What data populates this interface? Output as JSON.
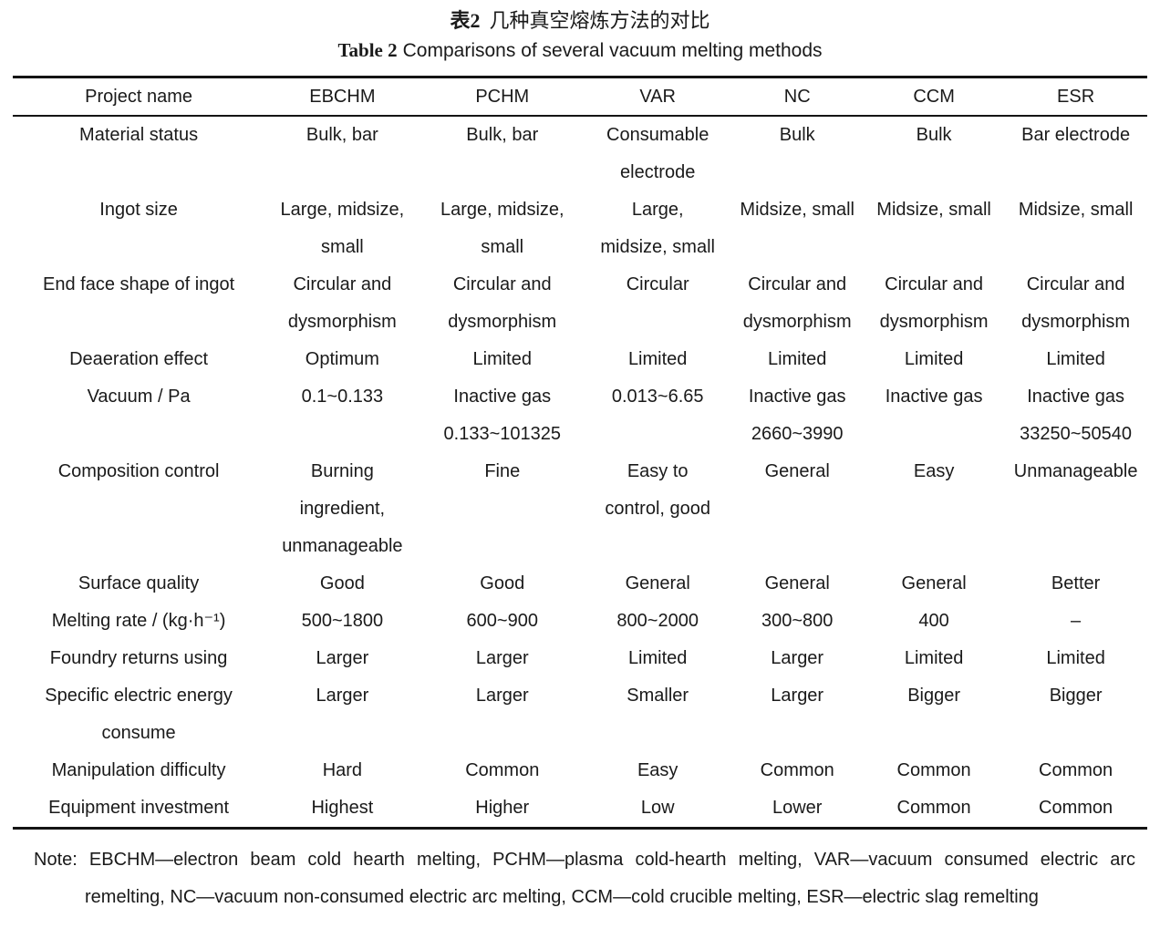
{
  "caption": {
    "zh_label": "表2",
    "zh_text": "几种真空熔炼方法的对比",
    "en_label": "Table 2",
    "en_text": "Comparisons of several vacuum melting methods"
  },
  "table": {
    "headers": [
      "Project name",
      "EBCHM",
      "PCHM",
      "VAR",
      "NC",
      "CCM",
      "ESR"
    ],
    "rows": [
      [
        "Material status",
        "Bulk, bar",
        "Bulk, bar",
        "Consumable\nelectrode",
        "Bulk",
        "Bulk",
        "Bar electrode"
      ],
      [
        "Ingot size",
        "Large, midsize,\nsmall",
        "Large, midsize,\nsmall",
        "Large,\nmidsize, small",
        "Midsize, small",
        "Midsize, small",
        "Midsize, small"
      ],
      [
        "End face shape of ingot",
        "Circular and\ndysmorphism",
        "Circular and\ndysmorphism",
        "Circular",
        "Circular and\ndysmorphism",
        "Circular and\ndysmorphism",
        "Circular and\ndysmorphism"
      ],
      [
        "Deaeration effect",
        "Optimum",
        "Limited",
        "Limited",
        "Limited",
        "Limited",
        "Limited"
      ],
      [
        "Vacuum / Pa",
        "0.1~0.133",
        "Inactive gas\n0.133~101325",
        "0.013~6.65",
        "Inactive gas\n2660~3990",
        "Inactive gas",
        "Inactive gas\n33250~50540"
      ],
      [
        "Composition control",
        "Burning\ningredient,\nunmanageable",
        "Fine",
        "Easy to\ncontrol, good",
        "General",
        "Easy",
        "Unmanageable"
      ],
      [
        "Surface quality",
        "Good",
        "Good",
        "General",
        "General",
        "General",
        "Better"
      ],
      [
        "Melting rate / (kg·h⁻¹)",
        "500~1800",
        "600~900",
        "800~2000",
        "300~800",
        "400",
        "–"
      ],
      [
        "Foundry returns using",
        "Larger",
        "Larger",
        "Limited",
        "Larger",
        "Limited",
        "Limited"
      ],
      [
        "Specific electric energy\nconsume",
        "Larger",
        "Larger",
        "Smaller",
        "Larger",
        "Bigger",
        "Bigger"
      ],
      [
        "Manipulation difficulty",
        "Hard",
        "Common",
        "Easy",
        "Common",
        "Common",
        "Common"
      ],
      [
        "Equipment investment",
        "Highest",
        "Higher",
        "Low",
        "Lower",
        "Common",
        "Common"
      ]
    ]
  },
  "note": {
    "label": "Note:",
    "text": "EBCHM—electron beam cold hearth melting, PCHM—plasma cold-hearth melting, VAR—vacuum consumed electric arc remelting, NC—vacuum non-consumed electric arc melting, CCM—cold crucible melting, ESR—electric slag remelting"
  }
}
